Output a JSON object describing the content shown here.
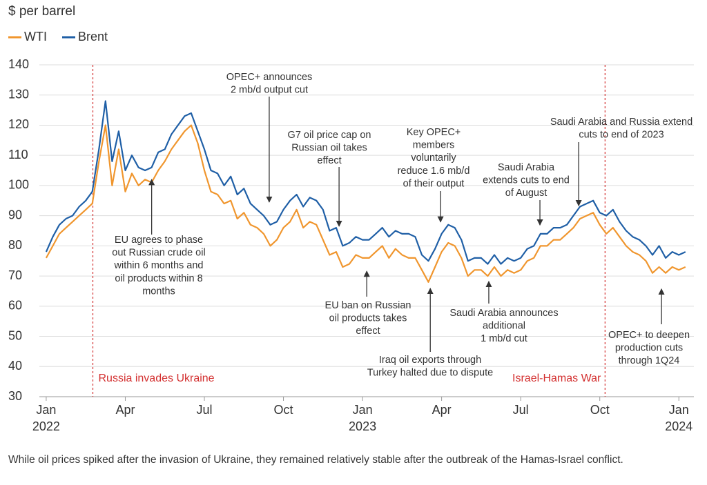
{
  "chart_data": {
    "type": "line",
    "y_axis_label": "$ per barrel",
    "caption": "While oil prices spiked after the invasion of Ukraine, they remained relatively stable after the outbreak of the Hamas-Israel conflict.",
    "x": [
      0,
      0.25,
      0.5,
      0.75,
      1,
      1.25,
      1.5,
      1.75,
      2,
      2.25,
      2.5,
      2.75,
      3,
      3.25,
      3.5,
      3.75,
      4,
      4.25,
      4.5,
      4.75,
      5,
      5.25,
      5.5,
      5.75,
      6,
      6.25,
      6.5,
      6.75,
      7,
      7.25,
      7.5,
      7.75,
      8,
      8.25,
      8.5,
      8.75,
      9,
      9.25,
      9.5,
      9.75,
      10,
      10.25,
      10.5,
      10.75,
      11,
      11.25,
      11.5,
      11.75,
      12,
      12.25,
      12.5,
      12.75,
      13,
      13.25,
      13.5,
      13.75,
      14,
      14.25,
      14.5,
      14.75,
      15,
      15.25,
      15.5,
      15.75,
      16,
      16.25,
      16.5,
      16.75,
      17,
      17.25,
      17.5,
      17.75,
      18,
      18.25,
      18.5,
      18.75,
      19,
      19.25,
      19.5,
      19.75,
      20,
      20.25,
      20.5,
      20.75,
      21,
      21.25,
      21.5,
      21.75,
      22,
      22.25,
      22.5,
      22.75,
      23,
      23.25,
      23.5,
      23.75,
      24,
      24.25
    ],
    "series": [
      {
        "name": "WTI",
        "color": "#f0962e",
        "values": [
          76,
          80,
          84,
          86,
          88,
          90,
          92,
          94,
          108,
          120,
          100,
          112,
          98,
          104,
          100,
          102,
          101,
          105,
          108,
          112,
          115,
          118,
          120,
          114,
          105,
          98,
          97,
          94,
          95,
          89,
          91,
          87,
          86,
          84,
          80,
          82,
          86,
          88,
          92,
          86,
          88,
          87,
          82,
          77,
          78,
          73,
          74,
          77,
          76,
          76,
          78,
          80,
          76,
          79,
          77,
          76,
          76,
          72,
          68,
          73,
          78,
          81,
          80,
          76,
          70,
          72,
          72,
          70,
          73,
          70,
          72,
          71,
          72,
          75,
          76,
          80,
          80,
          82,
          82,
          84,
          86,
          89,
          90,
          91,
          87,
          84,
          86,
          83,
          80,
          78,
          77,
          75,
          71,
          73,
          71,
          73,
          72,
          73
        ]
      },
      {
        "name": "Brent",
        "color": "#1f5fa6",
        "values": [
          78,
          83,
          87,
          89,
          90,
          93,
          95,
          98,
          112,
          128,
          108,
          118,
          105,
          110,
          106,
          105,
          106,
          111,
          112,
          117,
          120,
          123,
          124,
          118,
          112,
          105,
          104,
          100,
          103,
          97,
          99,
          94,
          92,
          90,
          87,
          88,
          92,
          95,
          97,
          93,
          96,
          95,
          92,
          85,
          86,
          80,
          81,
          83,
          82,
          82,
          84,
          86,
          83,
          85,
          84,
          84,
          83,
          77,
          75,
          79,
          84,
          87,
          86,
          82,
          75,
          76,
          76,
          74,
          77,
          74,
          76,
          75,
          76,
          79,
          80,
          84,
          84,
          86,
          86,
          87,
          90,
          93,
          94,
          95,
          91,
          90,
          92,
          88,
          85,
          83,
          82,
          80,
          77,
          80,
          76,
          78,
          77,
          78
        ]
      }
    ],
    "xlim": [
      -0.26,
      24.57
    ],
    "xticks": [
      {
        "value": 0,
        "label": "Jan"
      },
      {
        "value": 3,
        "label": "Apr"
      },
      {
        "value": 6,
        "label": "Jul"
      },
      {
        "value": 9,
        "label": "Oct"
      },
      {
        "value": 12,
        "label": "Jan"
      },
      {
        "value": 15,
        "label": "Apr"
      },
      {
        "value": 18,
        "label": "Jul"
      },
      {
        "value": 21,
        "label": "Oct"
      },
      {
        "value": 24,
        "label": "Jan"
      }
    ],
    "year_labels": [
      {
        "value": 0,
        "label": "2022"
      },
      {
        "value": 12,
        "label": "2023"
      },
      {
        "value": 24,
        "label": "2024"
      }
    ],
    "ylim": [
      30,
      140
    ],
    "yticks": [
      30,
      40,
      50,
      60,
      70,
      80,
      90,
      100,
      110,
      120,
      130,
      140
    ],
    "grid": true,
    "events": [
      {
        "x": 1.77,
        "label": "Russia invades Ukraine",
        "color": "#d32f2f"
      },
      {
        "x": 21.2,
        "label": "Israel-Hamas War",
        "color": "#d32f2f"
      }
    ],
    "annotations": [
      {
        "x": 4.0,
        "y": 102,
        "text": [
          "EU agrees to phase",
          "out Russian crude oil",
          "within 6 months and",
          "oil products within 8",
          "months"
        ]
      },
      {
        "x": 8.46,
        "y": 94.5,
        "text": [
          "OPEC+ announces",
          "2 mb/d output cut"
        ]
      },
      {
        "x": 11.11,
        "y": 86.5,
        "text": [
          "G7 oil price cap on",
          "Russian oil takes",
          "effect"
        ]
      },
      {
        "x": 14.96,
        "y": 87.9,
        "text": [
          "Key OPEC+",
          "members",
          "voluntarily",
          "reduce 1.6 mb/d",
          "of their output"
        ]
      },
      {
        "x": 18.73,
        "y": 86.9,
        "text": [
          "Saudi Arabia",
          "extends cuts to end",
          "of August"
        ]
      },
      {
        "x": 20.2,
        "y": 93.3,
        "text": [
          "Saudi Arabia and Russia extend",
          "cuts to end of 2023"
        ]
      },
      {
        "x": 12.16,
        "y": 71.6,
        "text": [
          "EU ban on Russian",
          "oil products takes",
          "effect"
        ]
      },
      {
        "x": 14.57,
        "y": 65.9,
        "text": [
          "Iraq oil exports through",
          "Turkey halted due to dispute"
        ]
      },
      {
        "x": 16.79,
        "y": 68.2,
        "text": [
          "Saudi Arabia announces",
          "additional",
          "1 mb/d cut"
        ]
      },
      {
        "x": 23.34,
        "y": 65.7,
        "text": [
          "OPEC+ to deepen",
          "production cuts",
          "through 1Q24"
        ]
      }
    ]
  }
}
